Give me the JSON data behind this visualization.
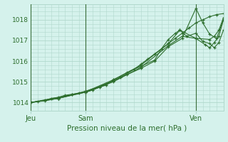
{
  "title": "",
  "xlabel": "Pression niveau de la mer( hPa )",
  "bg_color": "#d5f2ec",
  "grid_color": "#b0d8cc",
  "line_color": "#2d6e2d",
  "day_line_color": "#3a6e3a",
  "ylim": [
    1013.6,
    1018.75
  ],
  "xlim": [
    0,
    168
  ],
  "yticks": [
    1014,
    1015,
    1016,
    1017,
    1018
  ],
  "day_labels": [
    "Jeu",
    "Sam",
    "Ven"
  ],
  "day_positions": [
    0,
    48,
    144
  ],
  "series": [
    [
      [
        0,
        6,
        12,
        18,
        24,
        30,
        36,
        42,
        48,
        54,
        60,
        66,
        72,
        78,
        84,
        90,
        96,
        102,
        108,
        114,
        120,
        126,
        132,
        138,
        144,
        150,
        156,
        162,
        168
      ],
      [
        1014.0,
        1014.05,
        1014.1,
        1014.2,
        1014.25,
        1014.35,
        1014.4,
        1014.45,
        1014.5,
        1014.6,
        1014.75,
        1014.9,
        1015.05,
        1015.2,
        1015.4,
        1015.6,
        1015.85,
        1016.1,
        1016.35,
        1016.6,
        1016.85,
        1017.1,
        1017.35,
        1017.6,
        1017.85,
        1018.0,
        1018.15,
        1018.25,
        1018.3
      ]
    ],
    [
      [
        0,
        12,
        24,
        36,
        48,
        60,
        72,
        84,
        96,
        108,
        120,
        132,
        144,
        150,
        156,
        162,
        168
      ],
      [
        1014.0,
        1014.08,
        1014.2,
        1014.38,
        1014.55,
        1014.78,
        1015.05,
        1015.35,
        1015.65,
        1016.0,
        1016.7,
        1017.1,
        1018.55,
        1017.85,
        1017.3,
        1017.1,
        1018.0
      ]
    ],
    [
      [
        0,
        24,
        48,
        66,
        72,
        78,
        84,
        96,
        108,
        114,
        120,
        126,
        130,
        136,
        144,
        150,
        156,
        160,
        164,
        168
      ],
      [
        1014.0,
        1014.2,
        1014.5,
        1014.85,
        1015.1,
        1015.25,
        1015.45,
        1015.75,
        1016.05,
        1016.6,
        1017.05,
        1017.35,
        1017.5,
        1017.2,
        1017.35,
        1016.95,
        1016.85,
        1016.65,
        1016.9,
        1017.5
      ]
    ],
    [
      [
        0,
        24,
        48,
        72,
        96,
        120,
        130,
        144,
        156,
        160,
        164,
        168
      ],
      [
        1014.0,
        1014.2,
        1014.52,
        1015.1,
        1015.8,
        1016.85,
        1017.5,
        1017.1,
        1017.05,
        1017.2,
        1017.5,
        1018.1
      ]
    ],
    [
      [
        0,
        48,
        72,
        96,
        120,
        132,
        144,
        152,
        156,
        160,
        164,
        168
      ],
      [
        1014.0,
        1014.5,
        1015.0,
        1015.7,
        1016.75,
        1017.2,
        1017.1,
        1016.8,
        1016.65,
        1016.9,
        1017.2,
        1018.0
      ]
    ]
  ]
}
